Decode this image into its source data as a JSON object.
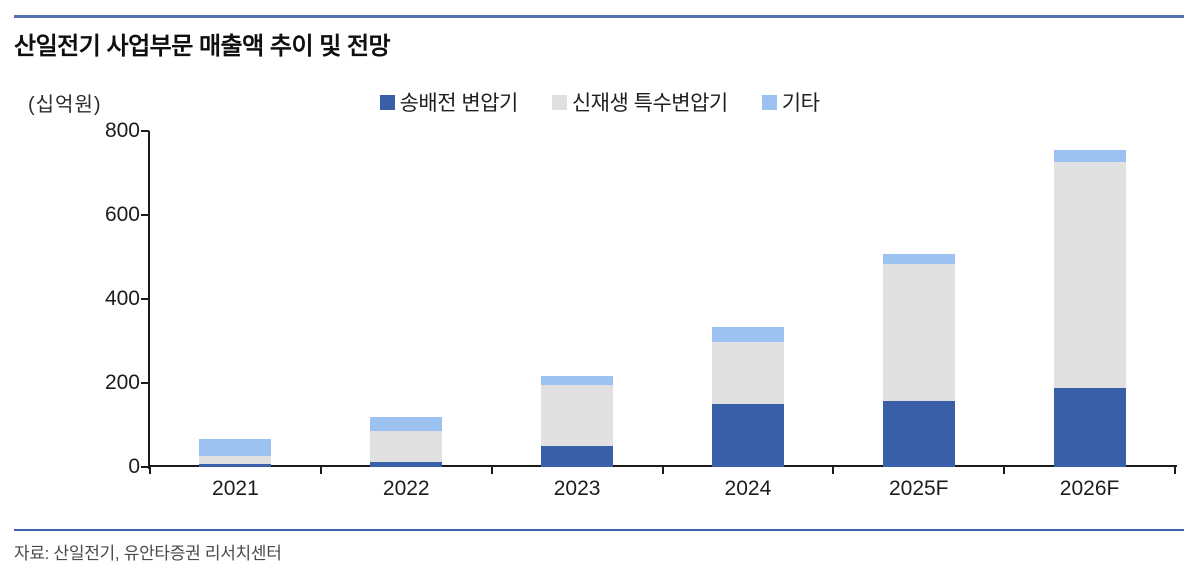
{
  "page": {
    "top_rule_color": "#5272b4",
    "bottom_rule_color": "#3f63ab",
    "axis_color": "#1a1a1a"
  },
  "chart_data": {
    "type": "bar",
    "stacked": true,
    "title": "산일전기 사업부문 매출액 추이 및 전망",
    "unit_label": "(십억원)",
    "categories": [
      "2021",
      "2022",
      "2023",
      "2024",
      "2025F",
      "2026F"
    ],
    "series": [
      {
        "name": "송배전 변압기",
        "color": "#3a5fa9",
        "values": [
          8,
          12,
          50,
          150,
          157,
          188
        ]
      },
      {
        "name": "신재생 특수변압기",
        "color": "#e0e0e0",
        "values": [
          19,
          74,
          145,
          148,
          326,
          538
        ]
      },
      {
        "name": "기타",
        "color": "#9cc2f2",
        "values": [
          40,
          33,
          21,
          36,
          24,
          29
        ]
      }
    ],
    "totals": [
      67,
      119,
      216,
      334,
      507,
      755
    ],
    "ylim": [
      0,
      800
    ],
    "yticks": [
      0,
      200,
      400,
      600,
      800
    ],
    "grid": false,
    "legend_position": "top-center"
  },
  "footer": {
    "source": "자료: 산일전기, 유안타증권 리서치센터"
  }
}
